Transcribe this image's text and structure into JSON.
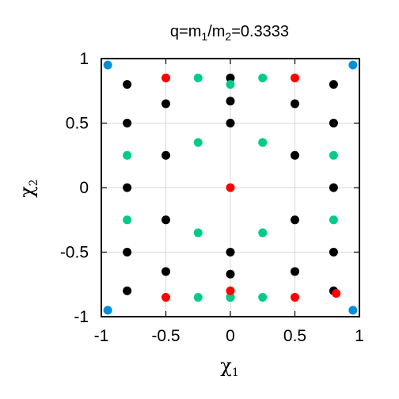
{
  "chart_data": {
    "type": "scatter",
    "title": {
      "prefix": "q=m",
      "sub1": "1",
      "mid": "/m",
      "sub2": "2",
      "suffix": "=0.3333"
    },
    "xlabel": {
      "main": "χ",
      "sub": "1"
    },
    "ylabel": {
      "main": "χ",
      "sub": "2"
    },
    "xlim": [
      -1,
      1
    ],
    "ylim": [
      -1,
      1
    ],
    "xticks": [
      -1,
      -0.5,
      0,
      0.5,
      1
    ],
    "yticks": [
      -1,
      -0.5,
      0,
      0.5,
      1
    ],
    "xtick_labels": [
      "-1",
      "-0.5",
      "0",
      "0.5",
      "1"
    ],
    "ytick_labels": [
      "-1",
      "-0.5",
      "0",
      "0.5",
      "1"
    ],
    "grid": true,
    "legend": "none",
    "series": [
      {
        "color": "#000000",
        "points": [
          [
            -0.8,
            0.8
          ],
          [
            -0.8,
            0.5
          ],
          [
            -0.8,
            0.0
          ],
          [
            -0.8,
            -0.5
          ],
          [
            -0.8,
            -0.8
          ],
          [
            -0.5,
            0.65
          ],
          [
            -0.5,
            0.25
          ],
          [
            -0.5,
            -0.25
          ],
          [
            -0.5,
            -0.65
          ],
          [
            0.0,
            0.85
          ],
          [
            0.0,
            0.67
          ],
          [
            0.0,
            0.5
          ],
          [
            0.0,
            -0.5
          ],
          [
            0.0,
            -0.67
          ],
          [
            0.0,
            -0.85
          ],
          [
            0.5,
            0.65
          ],
          [
            0.5,
            0.25
          ],
          [
            0.5,
            -0.25
          ],
          [
            0.5,
            -0.65
          ],
          [
            0.8,
            0.8
          ],
          [
            0.8,
            0.5
          ],
          [
            0.8,
            0.0
          ],
          [
            0.8,
            -0.5
          ],
          [
            0.8,
            -0.8
          ]
        ]
      },
      {
        "color": "#00cc88",
        "points": [
          [
            -0.8,
            0.25
          ],
          [
            -0.8,
            -0.25
          ],
          [
            -0.25,
            0.85
          ],
          [
            -0.25,
            0.35
          ],
          [
            -0.25,
            -0.35
          ],
          [
            -0.25,
            -0.85
          ],
          [
            0.0,
            0.8
          ],
          [
            0.0,
            -0.85
          ],
          [
            0.25,
            0.85
          ],
          [
            0.25,
            0.35
          ],
          [
            0.25,
            -0.35
          ],
          [
            0.25,
            -0.85
          ],
          [
            0.8,
            0.25
          ],
          [
            0.8,
            -0.25
          ]
        ]
      },
      {
        "color": "#ff0000",
        "points": [
          [
            -0.5,
            0.85
          ],
          [
            0.5,
            0.85
          ],
          [
            0.0,
            0.0
          ],
          [
            0.0,
            -0.8
          ],
          [
            -0.5,
            -0.85
          ],
          [
            0.5,
            -0.85
          ],
          [
            0.82,
            -0.82
          ]
        ]
      },
      {
        "color": "#0090d8",
        "points": [
          [
            -0.95,
            0.95
          ],
          [
            0.95,
            0.95
          ],
          [
            -0.95,
            -0.95
          ],
          [
            0.95,
            -0.95
          ]
        ]
      }
    ]
  }
}
